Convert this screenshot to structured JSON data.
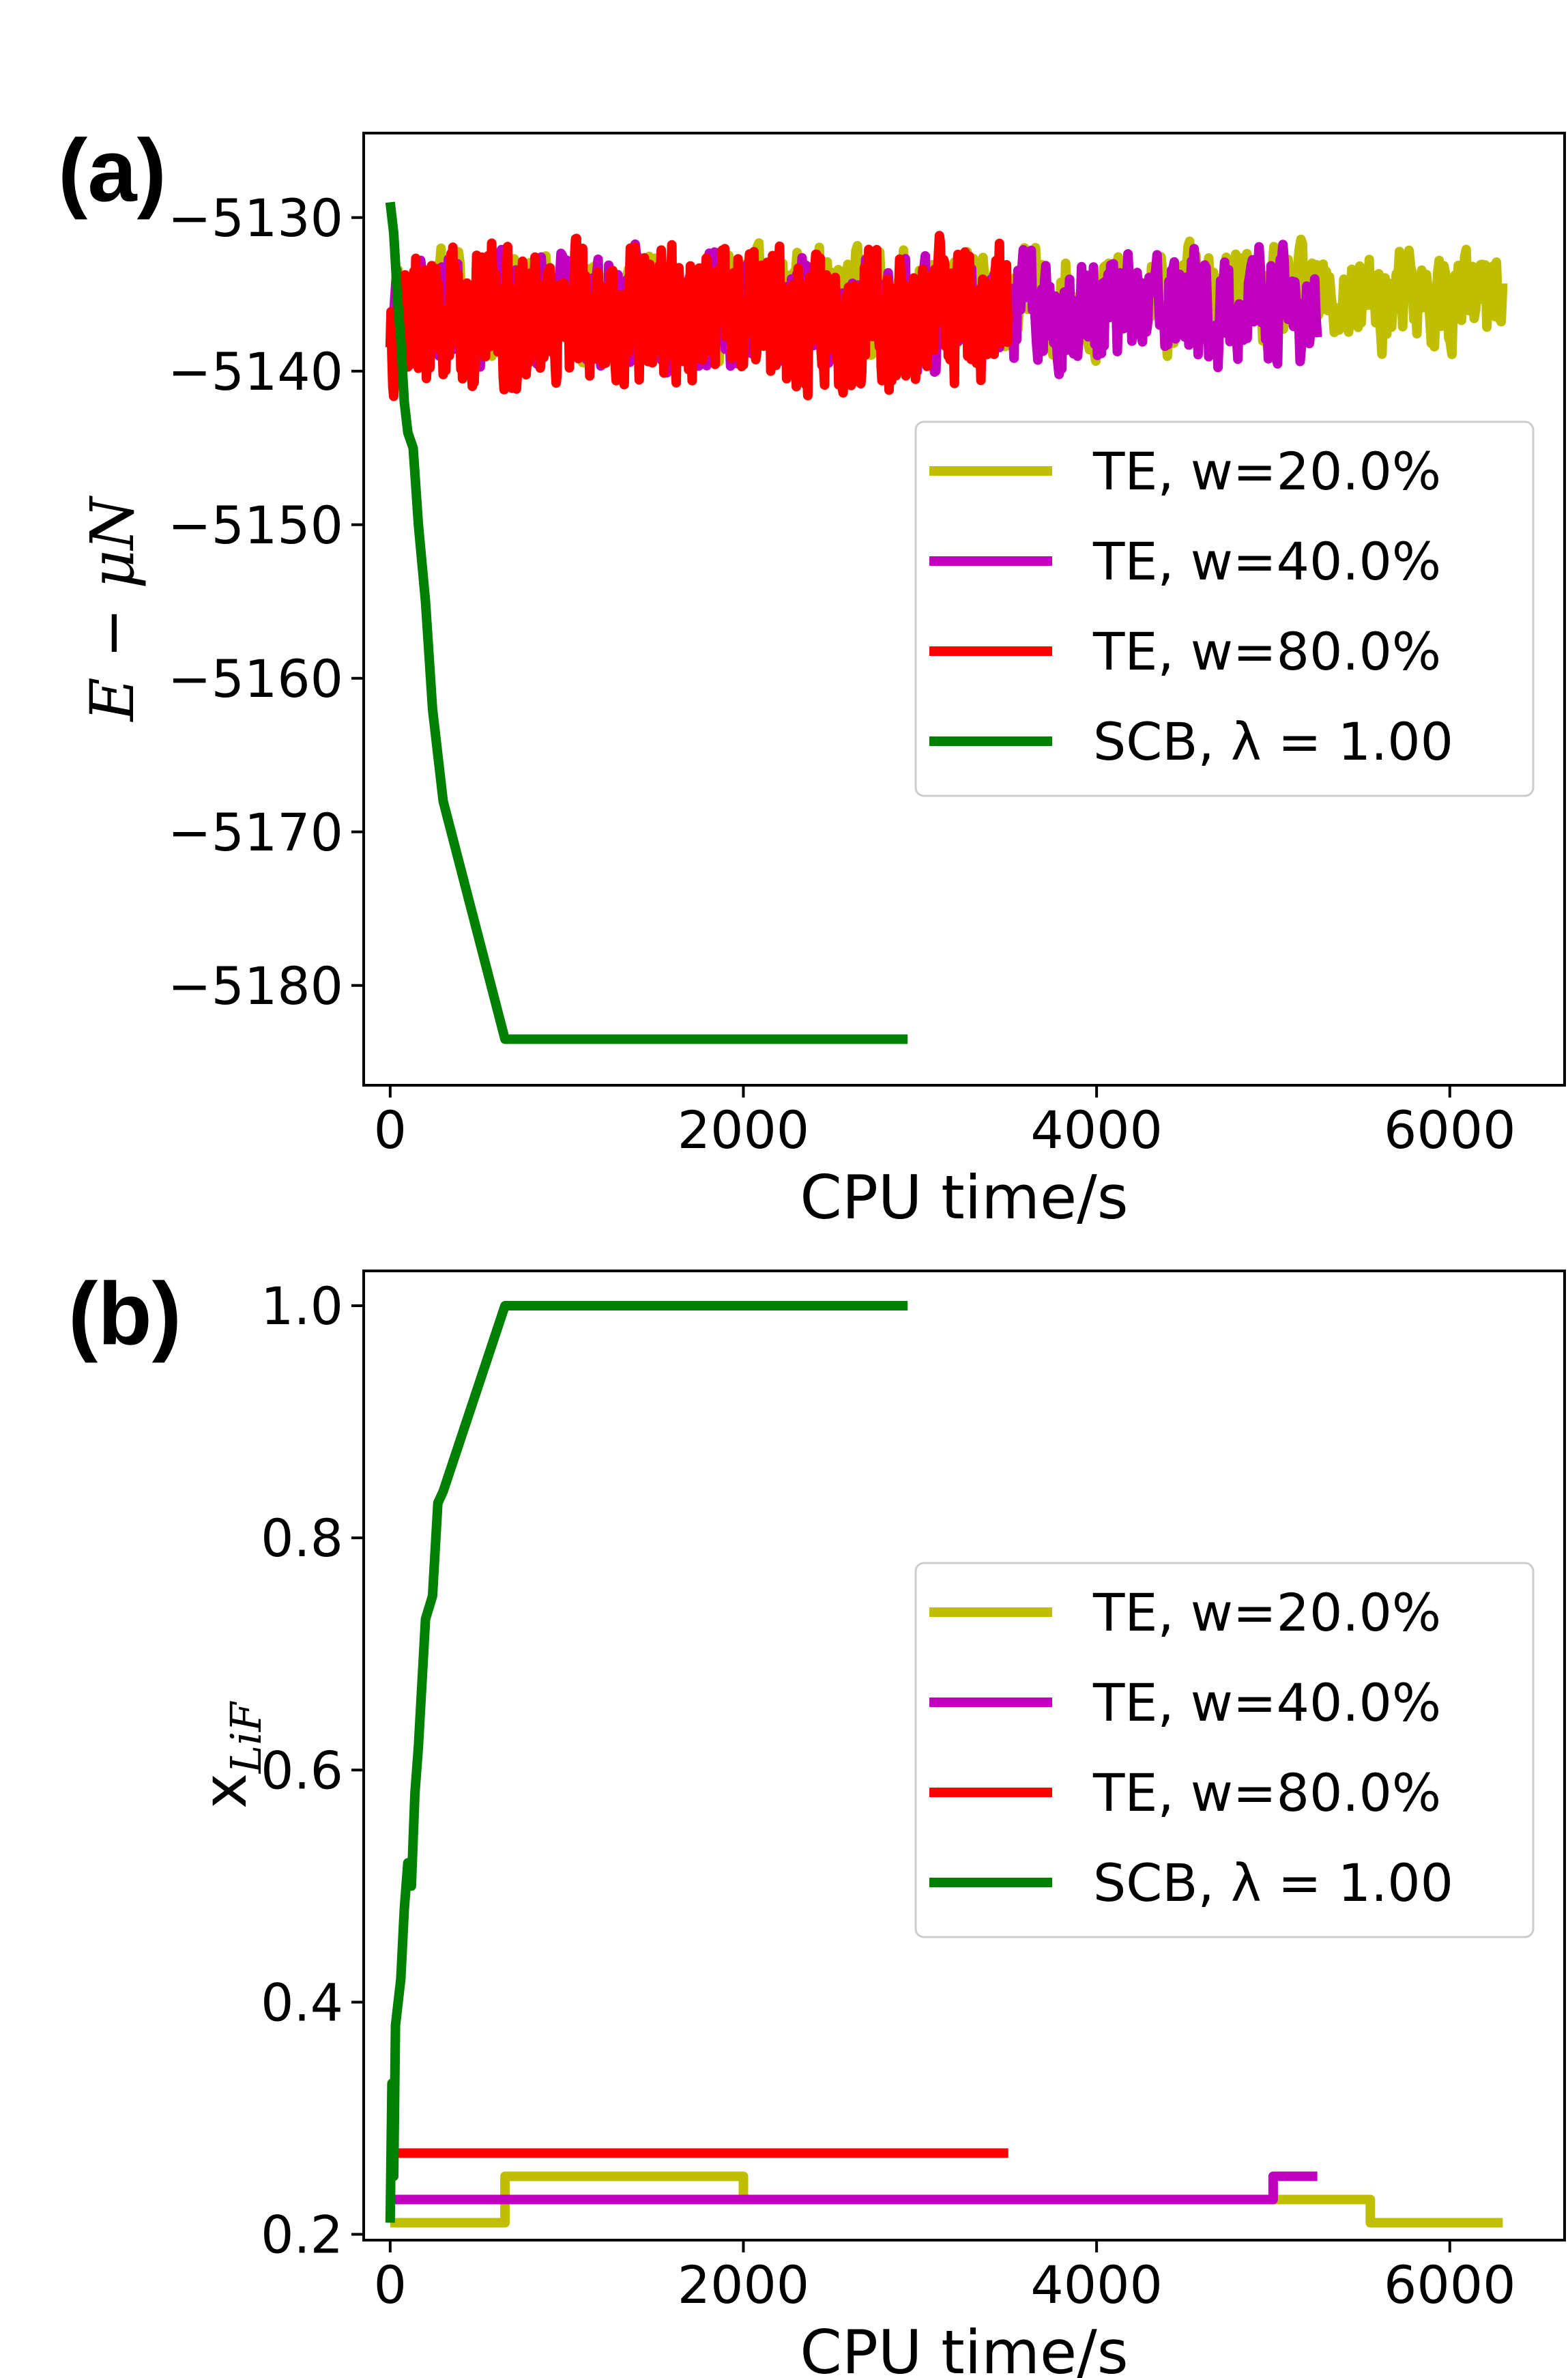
{
  "chart_data": [
    {
      "panel_label": "(a)",
      "type": "line",
      "xlabel": "CPU time/s",
      "ylabel_parts": [
        "E",
        " − ",
        "μN"
      ],
      "xlim": [
        -150,
        6650
      ],
      "ylim": [
        -5186.5,
        -5124.5
      ],
      "xticks": [
        0,
        2000,
        4000,
        6000
      ],
      "xtick_labels": [
        "0",
        "2000",
        "4000",
        "6000"
      ],
      "yticks": [
        -5130,
        -5140,
        -5150,
        -5160,
        -5170,
        -5180
      ],
      "ytick_labels": [
        "−5130",
        "−5140",
        "−5150",
        "−5160",
        "−5170",
        "−5180"
      ],
      "legend_position": "center-right",
      "series": [
        {
          "name": "TE, w=20.0%",
          "color": "#bfbf00",
          "kind": "noise",
          "x_start": 0,
          "x_end": 6300,
          "mean": -5135.5,
          "amplitude": 4.5,
          "seed": 11
        },
        {
          "name": "TE, w=40.0%",
          "color": "#bf00bf",
          "kind": "noise",
          "x_start": 0,
          "x_end": 5250,
          "mean": -5136.0,
          "amplitude": 5.0,
          "seed": 23
        },
        {
          "name": "TE, w=80.0%",
          "color": "#ff0000",
          "kind": "noise",
          "x_start": 0,
          "x_end": 3500,
          "mean": -5136.5,
          "amplitude": 6.0,
          "seed": 37
        },
        {
          "name": "SCB, λ = 1.00",
          "color": "#008000",
          "kind": "line",
          "x": [
            0,
            20,
            40,
            60,
            80,
            100,
            130,
            160,
            200,
            240,
            270,
            300,
            650,
            2930
          ],
          "y": [
            -5129,
            -5131,
            -5135,
            -5138,
            -5142,
            -5144,
            -5145,
            -5150,
            -5155,
            -5162,
            -5165,
            -5168,
            -5183.5,
            -5183.5
          ]
        }
      ]
    },
    {
      "panel_label": "(b)",
      "type": "line",
      "xlabel": "CPU time/s",
      "ylabel_parts": [
        "x",
        "LiF"
      ],
      "xlim": [
        -150,
        6650
      ],
      "ylim": [
        0.195,
        1.03
      ],
      "xticks": [
        0,
        2000,
        4000,
        6000
      ],
      "xtick_labels": [
        "0",
        "2000",
        "4000",
        "6000"
      ],
      "yticks": [
        0.2,
        0.4,
        0.6,
        0.8,
        1.0
      ],
      "ytick_labels": [
        "0.2",
        "0.4",
        "0.6",
        "0.8",
        "1.0"
      ],
      "legend_position": "center-right",
      "series": [
        {
          "name": "TE, w=20.0%",
          "color": "#bfbf00",
          "kind": "step",
          "x": [
            0,
            650,
            650,
            2000,
            2000,
            5000,
            5000,
            5550,
            5550,
            6300
          ],
          "y": [
            0.21,
            0.21,
            0.25,
            0.25,
            0.23,
            0.23,
            0.23,
            0.23,
            0.21,
            0.21
          ]
        },
        {
          "name": "TE, w=40.0%",
          "color": "#bf00bf",
          "kind": "step",
          "x": [
            0,
            5000,
            5000,
            5250
          ],
          "y": [
            0.23,
            0.23,
            0.25,
            0.25
          ]
        },
        {
          "name": "TE, w=80.0%",
          "color": "#ff0000",
          "kind": "step",
          "x": [
            0,
            3500
          ],
          "y": [
            0.27,
            0.27
          ]
        },
        {
          "name": "SCB, λ = 1.00",
          "color": "#008000",
          "kind": "line",
          "x": [
            0,
            10,
            20,
            30,
            60,
            80,
            100,
            120,
            140,
            160,
            200,
            240,
            270,
            300,
            650,
            2930
          ],
          "y": [
            0.21,
            0.33,
            0.25,
            0.38,
            0.42,
            0.48,
            0.52,
            0.5,
            0.58,
            0.62,
            0.73,
            0.75,
            0.83,
            0.84,
            1.0,
            1.0
          ]
        }
      ]
    }
  ]
}
